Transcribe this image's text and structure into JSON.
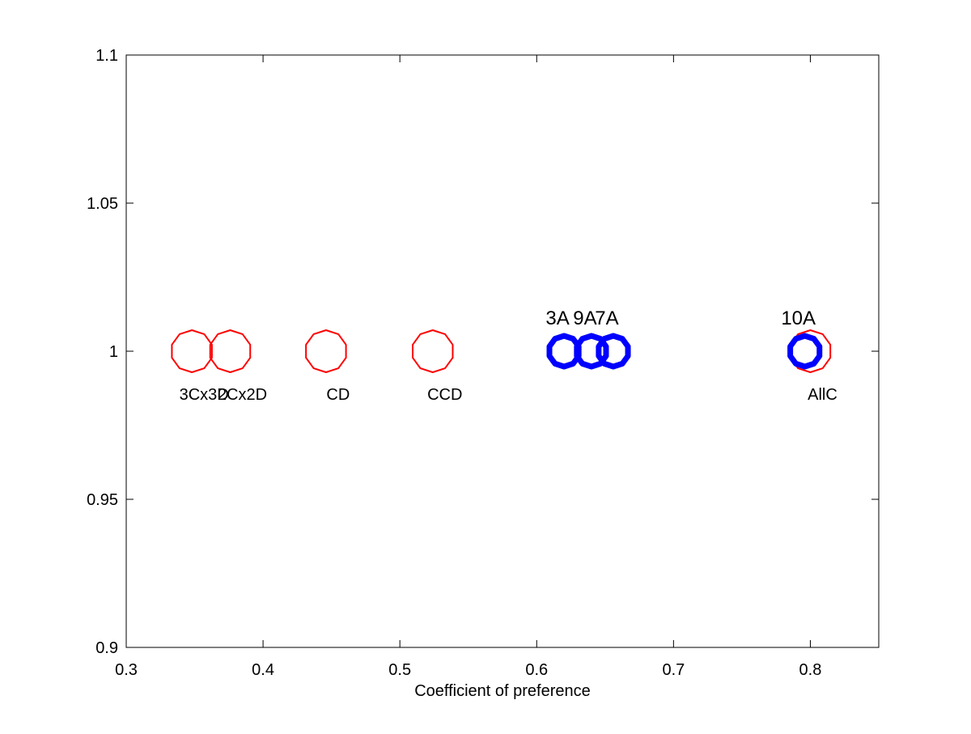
{
  "chart_data": {
    "type": "scatter",
    "title": "",
    "xlabel": "Coefficient of preference",
    "ylabel": "",
    "xlim": [
      0.3,
      0.85
    ],
    "ylim": [
      0.9,
      1.1
    ],
    "xticks": [
      0.3,
      0.4,
      0.5,
      0.6,
      0.7,
      0.8
    ],
    "xtick_labels": [
      "0.3",
      "0.4",
      "0.5",
      "0.6",
      "0.7",
      "0.8"
    ],
    "yticks": [
      0.9,
      0.95,
      1.0,
      1.05,
      1.1
    ],
    "ytick_labels": [
      "0.9",
      "0.95",
      "1",
      "1.05",
      "1.1"
    ],
    "grid": false,
    "series": [
      {
        "color": "#ff0000",
        "marker": "decagon-outline",
        "labels_position": "below",
        "points": [
          {
            "x": 0.348,
            "y": 1.0,
            "label": "3Cx3D"
          },
          {
            "x": 0.376,
            "y": 1.0,
            "label": "2Cx2D"
          },
          {
            "x": 0.446,
            "y": 1.0,
            "label": "CD"
          },
          {
            "x": 0.524,
            "y": 1.0,
            "label": "CCD"
          },
          {
            "x": 0.8,
            "y": 1.0,
            "label": "AllC"
          }
        ]
      },
      {
        "color": "#0000ff",
        "marker": "decagon-outline-thick",
        "labels_position": "above",
        "points": [
          {
            "x": 0.62,
            "y": 1.0,
            "label": "3A"
          },
          {
            "x": 0.64,
            "y": 1.0,
            "label": "9A"
          },
          {
            "x": 0.656,
            "y": 1.0,
            "label": "7A"
          },
          {
            "x": 0.796,
            "y": 1.0,
            "label": "10A"
          }
        ]
      }
    ]
  }
}
